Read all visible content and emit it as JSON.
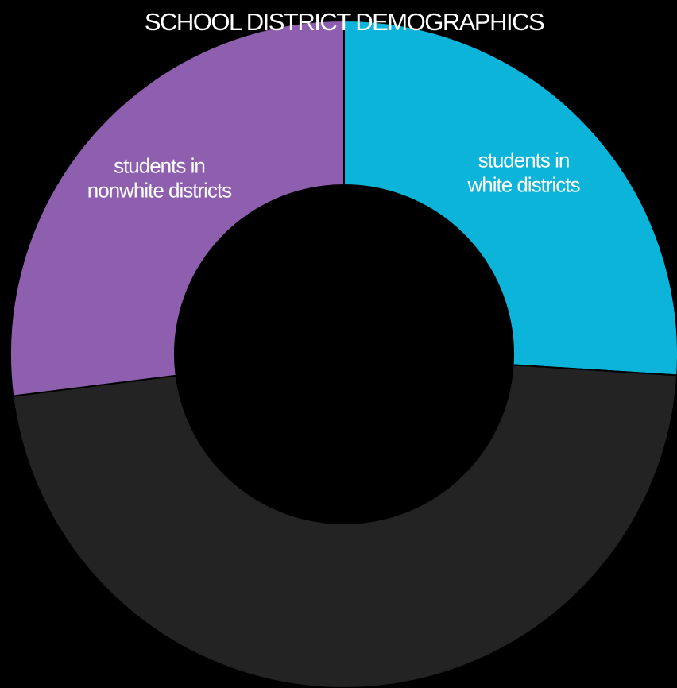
{
  "chart_data": {
    "type": "pie",
    "variant": "donut",
    "title": "SCHOOL DISTRICT DEMOGRAPHICS",
    "start": "top",
    "direction": "clockwise",
    "slices": [
      {
        "key": "white",
        "label_lines": [
          "students in",
          "white districts"
        ],
        "value": 26,
        "color": "#0db4d9"
      },
      {
        "key": "other",
        "label_lines": [],
        "value": 47,
        "color": "#232323"
      },
      {
        "key": "nonwhite",
        "label_lines": [
          "students in",
          "nonwhite districts"
        ],
        "value": 27,
        "color": "#8f5faf"
      }
    ],
    "slice_border_color": "#000000",
    "background_color": "#000000",
    "legend": "none"
  }
}
